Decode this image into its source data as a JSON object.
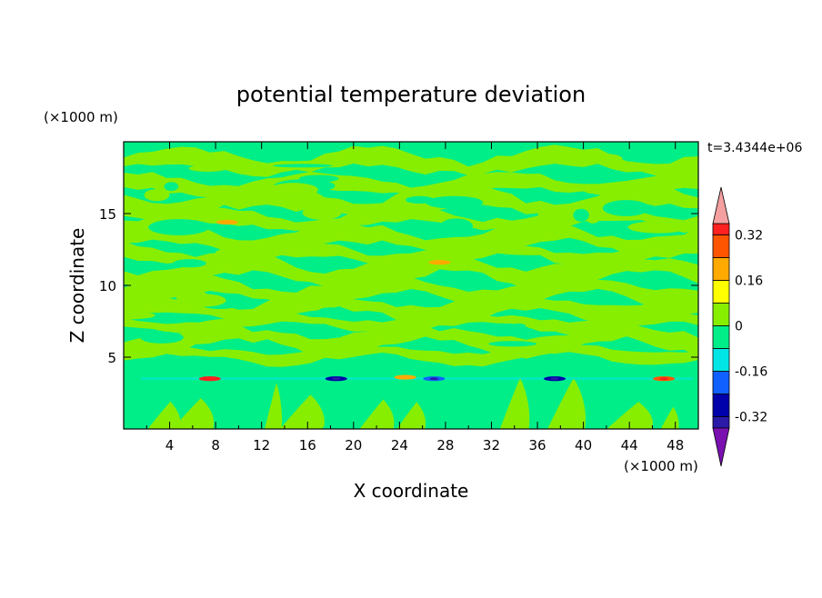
{
  "chart_data": {
    "type": "heatmap",
    "title": "potential temperature deviation",
    "xlabel": "X coordinate",
    "ylabel": "Z coordinate",
    "x_unit_label": "(×1000 m)",
    "y_unit_label": "(×1000 m)",
    "time_label": "t=3.4344e+06",
    "xlim": [
      0,
      50
    ],
    "ylim": [
      0,
      20
    ],
    "x_ticks": [
      4,
      8,
      12,
      16,
      20,
      24,
      28,
      32,
      36,
      40,
      44,
      48
    ],
    "y_ticks": [
      5,
      10,
      15
    ],
    "colorbar": {
      "levels": [
        -0.4,
        -0.36,
        -0.32,
        -0.24,
        -0.16,
        -0.08,
        0,
        0.08,
        0.16,
        0.24,
        0.32,
        0.36,
        0.4
      ],
      "colors": [
        "#7a10b0",
        "#2a1aa8",
        "#0000aa",
        "#1060ff",
        "#00e5e5",
        "#00ee88",
        "#88ee00",
        "#ffff00",
        "#ffaa00",
        "#ff5500",
        "#ff2020",
        "#f4a0a0"
      ],
      "tick_labels": [
        "0.32",
        "0.16",
        "0",
        "-0.16",
        "-0.32"
      ],
      "tick_values": [
        0.32,
        0.16,
        0,
        -0.16,
        -0.32
      ]
    },
    "field_description": "layered contour field: alternating bands of 0 to 0.08 and -0.08 to 0 above z=5; thin band of warm/cool anomalies near z=3.5; vertical plumes below z=4",
    "anomalies": [
      {
        "x": 9.0,
        "z": 14.4,
        "value": 0.16
      },
      {
        "x": 27.5,
        "z": 11.6,
        "value": 0.16
      },
      {
        "x": 7.5,
        "z": 3.5,
        "value": 0.32
      },
      {
        "x": 18.5,
        "z": 3.5,
        "value": -0.32
      },
      {
        "x": 27.0,
        "z": 3.5,
        "value": -0.24
      },
      {
        "x": 37.5,
        "z": 3.5,
        "value": -0.32
      },
      {
        "x": 47.0,
        "z": 3.5,
        "value": 0.24
      },
      {
        "x": 24.5,
        "z": 3.6,
        "value": 0.16
      }
    ]
  }
}
